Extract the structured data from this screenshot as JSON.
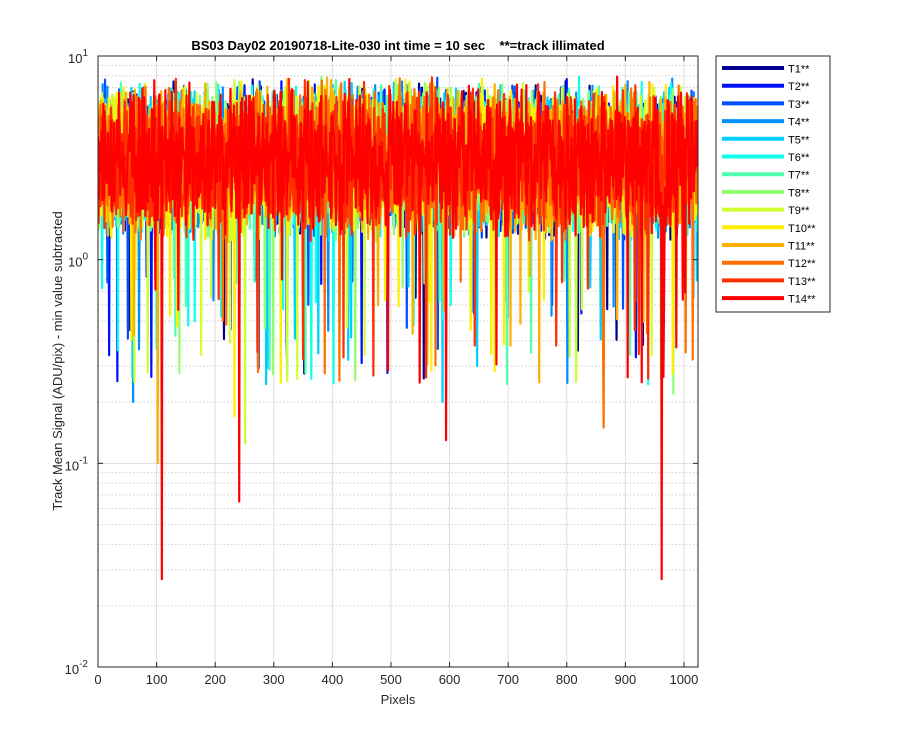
{
  "chart_data": {
    "type": "line",
    "title": "BS03 Day02 20190718-Lite-030 int time = 10 sec    **=track illimated",
    "xlabel": "Pixels",
    "ylabel": "Track Mean Signal (ADU/pix) - min value subtracted",
    "xlim": [
      0,
      1024
    ],
    "ylim": [
      0.01,
      10
    ],
    "yscale": "log",
    "grid": true,
    "legend_position": "outside-right",
    "x_ticks": [
      "0",
      "100",
      "200",
      "300",
      "400",
      "500",
      "600",
      "700",
      "800",
      "900",
      "1000"
    ],
    "y_ticks": [
      {
        "base": "10",
        "exp": "1"
      },
      {
        "base": "10",
        "exp": "0"
      },
      {
        "base": "10",
        "exp": "-1"
      },
      {
        "base": "10",
        "exp": "-2"
      }
    ],
    "series": [
      {
        "name": "T1**",
        "color": "#00008f",
        "typical_range": [
          1.2,
          8.0
        ]
      },
      {
        "name": "T2**",
        "color": "#0010ff",
        "typical_range": [
          1.2,
          8.0
        ]
      },
      {
        "name": "T3**",
        "color": "#0050ff",
        "typical_range": [
          1.2,
          8.0
        ]
      },
      {
        "name": "T4**",
        "color": "#008fff",
        "typical_range": [
          1.2,
          8.0
        ]
      },
      {
        "name": "T5**",
        "color": "#00cfff",
        "typical_range": [
          1.2,
          8.0
        ]
      },
      {
        "name": "T6**",
        "color": "#10ffef",
        "typical_range": [
          1.2,
          8.0
        ]
      },
      {
        "name": "T7**",
        "color": "#50ffaf",
        "typical_range": [
          1.2,
          8.0
        ]
      },
      {
        "name": "T8**",
        "color": "#8fff70",
        "typical_range": [
          1.2,
          8.0
        ]
      },
      {
        "name": "T9**",
        "color": "#cfff30",
        "typical_range": [
          1.2,
          8.0
        ]
      },
      {
        "name": "T10**",
        "color": "#ffef00",
        "typical_range": [
          1.2,
          8.0
        ]
      },
      {
        "name": "T11**",
        "color": "#ffaf00",
        "typical_range": [
          1.2,
          8.0
        ]
      },
      {
        "name": "T12**",
        "color": "#ff7000",
        "typical_range": [
          1.2,
          8.0
        ]
      },
      {
        "name": "T13**",
        "color": "#ff3000",
        "typical_range": [
          1.2,
          8.0
        ]
      },
      {
        "name": "T14**",
        "color": "#ff0000",
        "typical_range": [
          1.2,
          8.0
        ]
      }
    ],
    "notable_dips": [
      {
        "series": "T4**",
        "x": 60,
        "y": 0.2
      },
      {
        "series": "T9**",
        "x": 85,
        "y": 0.28
      },
      {
        "series": "T11**",
        "x": 102,
        "y": 0.1
      },
      {
        "series": "T14**",
        "x": 109,
        "y": 0.027
      },
      {
        "series": "T10**",
        "x": 233,
        "y": 0.17
      },
      {
        "series": "T14**",
        "x": 241,
        "y": 0.065
      },
      {
        "series": "T9**",
        "x": 251,
        "y": 0.125
      },
      {
        "series": "T13**",
        "x": 470,
        "y": 0.27
      },
      {
        "series": "T5**",
        "x": 588,
        "y": 0.2
      },
      {
        "series": "T14**",
        "x": 594,
        "y": 0.13
      },
      {
        "series": "T12**",
        "x": 863,
        "y": 0.15
      },
      {
        "series": "T14**",
        "x": 962,
        "y": 0.027
      },
      {
        "series": "T8**",
        "x": 982,
        "y": 0.22
      }
    ]
  }
}
